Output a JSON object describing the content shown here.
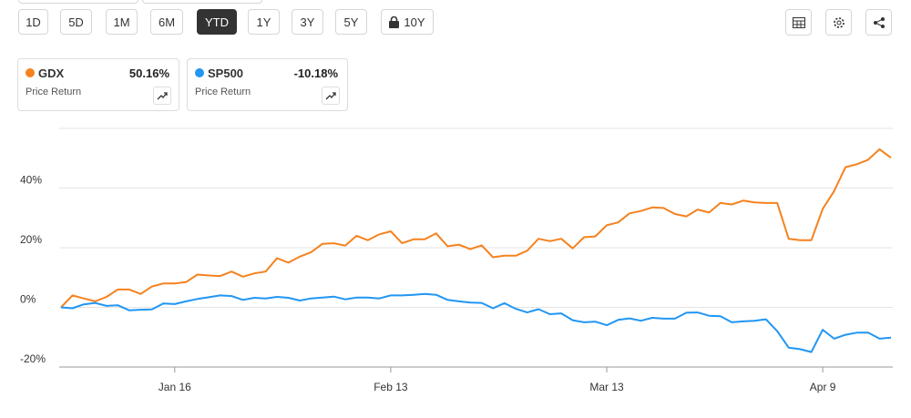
{
  "ranges": [
    "1D",
    "5D",
    "1M",
    "6M",
    "YTD",
    "1Y",
    "3Y",
    "5Y",
    "10Y"
  ],
  "selected_range": "YTD",
  "locked_range": "10Y",
  "chart_data": {
    "type": "line",
    "categories": [
      null,
      null,
      null,
      null,
      null,
      null,
      null,
      null,
      null,
      null,
      "Jan 16",
      null,
      null,
      null,
      null,
      null,
      null,
      null,
      null,
      null,
      null,
      null,
      null,
      null,
      null,
      null,
      null,
      null,
      null,
      "Feb 13",
      null,
      null,
      null,
      null,
      null,
      null,
      null,
      null,
      null,
      null,
      null,
      null,
      null,
      null,
      null,
      null,
      null,
      null,
      "Mar 13",
      null,
      null,
      null,
      null,
      null,
      null,
      null,
      null,
      null,
      null,
      null,
      null,
      null,
      null,
      null,
      null,
      null,
      null,
      "Apr 9",
      null,
      null,
      null,
      null,
      null,
      null
    ],
    "series": [
      {
        "name": "GDX",
        "return": "50.16%",
        "subtitle": "Price Return",
        "color": "#f5821f",
        "values": [
          0,
          4,
          3,
          2,
          3.5,
          6,
          6,
          4.5,
          7,
          8,
          8,
          8.5,
          11,
          10.7,
          10.5,
          12,
          10.3,
          11.4,
          12,
          16.5,
          15,
          17,
          18.5,
          21.3,
          21.5,
          20.7,
          24,
          22.5,
          24.5,
          25.5,
          21.5,
          22.8,
          22.8,
          24.8,
          20.5,
          21,
          19.5,
          20.8,
          16.8,
          17.3,
          17.3,
          19,
          23,
          22.2,
          23,
          19.8,
          23.5,
          23.8,
          27.5,
          28.5,
          31.5,
          32.3,
          33.5,
          33.3,
          31.3,
          30.5,
          32.8,
          31.8,
          35,
          34.5,
          35.8,
          35.2,
          35,
          35,
          23,
          22.5,
          22.5,
          33,
          39,
          47,
          48,
          49.5,
          53,
          50.16
        ]
      },
      {
        "name": "SP500",
        "return": "-10.18%",
        "subtitle": "Price Return",
        "color": "#2196f3",
        "values": [
          0,
          -0.3,
          1,
          1.5,
          0.5,
          0.7,
          -1,
          -0.8,
          -0.7,
          1.3,
          1.1,
          2,
          2.8,
          3.4,
          4,
          3.8,
          2.5,
          3.2,
          3,
          3.5,
          3.2,
          2.3,
          3,
          3.3,
          3.6,
          2.7,
          3.3,
          3.3,
          3,
          4,
          4,
          4.2,
          4.5,
          4.2,
          2.5,
          2,
          1.6,
          1.5,
          -0.3,
          1.4,
          -0.5,
          -1.7,
          -0.6,
          -2.3,
          -2,
          -4.3,
          -5,
          -4.8,
          -6,
          -4.2,
          -3.7,
          -4.5,
          -3.5,
          -3.8,
          -3.8,
          -1.8,
          -1.7,
          -2.8,
          -3,
          -5,
          -4.7,
          -4.5,
          -4,
          -8,
          -13.5,
          -14,
          -15,
          -7.5,
          -10.5,
          -9.2,
          -8.5,
          -8.5,
          -10.5,
          -10.18
        ]
      }
    ],
    "ylim": [
      -20,
      60
    ],
    "yticks": [
      {
        "value": -20,
        "label": "-20%"
      },
      {
        "value": 0,
        "label": "0%"
      },
      {
        "value": 20,
        "label": "20%"
      },
      {
        "value": 40,
        "label": "40%"
      }
    ],
    "grid": true
  }
}
